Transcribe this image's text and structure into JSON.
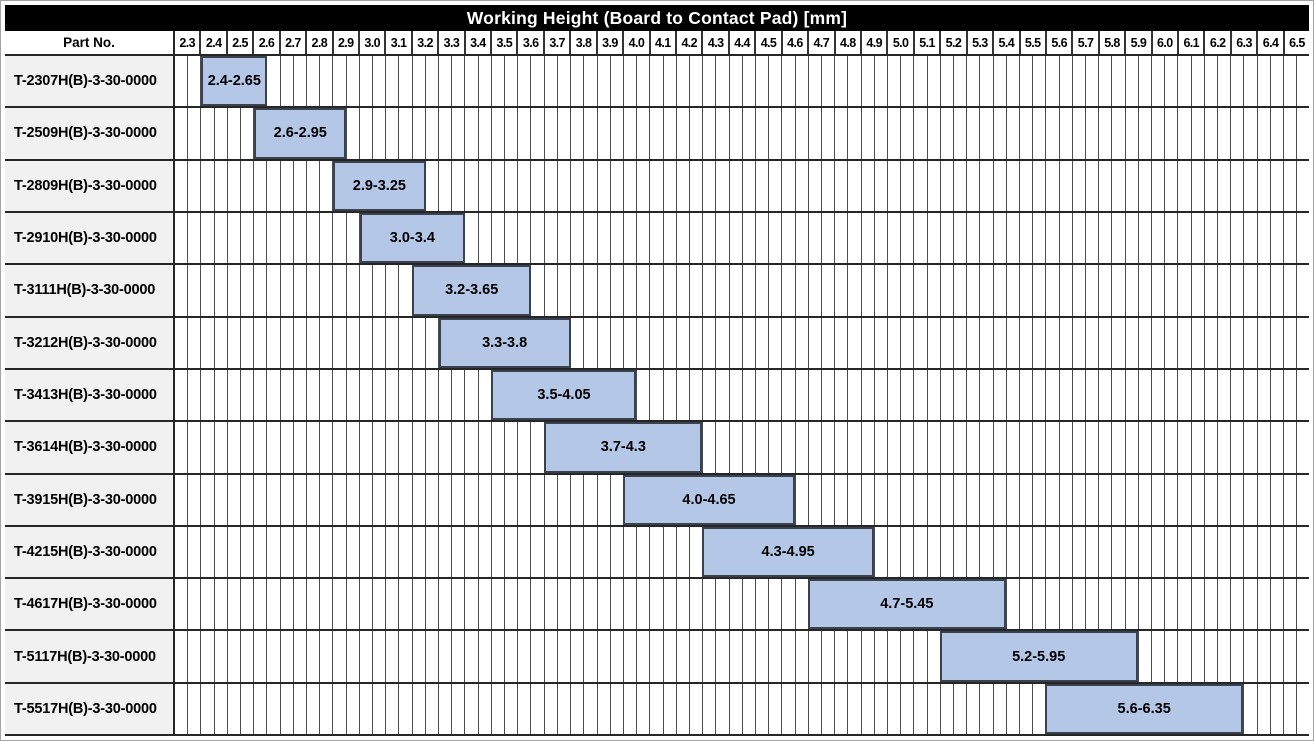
{
  "title": "Working Height (Board to Contact Pad) [mm]",
  "header": {
    "part_no_label": "Part No."
  },
  "colors": {
    "title_bg": "#000000",
    "title_text": "#ffffff",
    "bar_fill": "#b4c7e7",
    "bar_border": "#3a4250",
    "part_cell_bg": "#f1f1f1",
    "grid_line": "#4d4d4d",
    "row_line": "#262626"
  },
  "chart_data": {
    "type": "bar",
    "subtype": "horizontal-range-gantt",
    "title": "Working Height (Board to Contact Pad) [mm]",
    "legend": "none",
    "grid": "on",
    "axis": {
      "min": 2.3,
      "max": 6.6,
      "tick_step": 0.1,
      "minor_step": 0.05,
      "unit": "mm",
      "tick_labels": [
        "2.3",
        "2.4",
        "2.5",
        "2.6",
        "2.7",
        "2.8",
        "2.9",
        "3.0",
        "3.1",
        "3.2",
        "3.3",
        "3.4",
        "3.5",
        "3.6",
        "3.7",
        "3.8",
        "3.9",
        "4.0",
        "4.1",
        "4.2",
        "4.3",
        "4.4",
        "4.5",
        "4.6",
        "4.7",
        "4.8",
        "4.9",
        "5.0",
        "5.1",
        "5.2",
        "5.3",
        "5.4",
        "5.5",
        "5.6",
        "5.7",
        "5.8",
        "5.9",
        "6.0",
        "6.1",
        "6.2",
        "6.3",
        "6.4",
        "6.5"
      ]
    },
    "rows": [
      {
        "part_no": "T-2307H(B)-3-30-0000",
        "start": 2.4,
        "end": 2.65,
        "label": "2.4-2.65"
      },
      {
        "part_no": "T-2509H(B)-3-30-0000",
        "start": 2.6,
        "end": 2.95,
        "label": "2.6-2.95"
      },
      {
        "part_no": "T-2809H(B)-3-30-0000",
        "start": 2.9,
        "end": 3.25,
        "label": "2.9-3.25"
      },
      {
        "part_no": "T-2910H(B)-3-30-0000",
        "start": 3.0,
        "end": 3.4,
        "label": "3.0-3.4"
      },
      {
        "part_no": "T-3111H(B)-3-30-0000",
        "start": 3.2,
        "end": 3.65,
        "label": "3.2-3.65"
      },
      {
        "part_no": "T-3212H(B)-3-30-0000",
        "start": 3.3,
        "end": 3.8,
        "label": "3.3-3.8"
      },
      {
        "part_no": "T-3413H(B)-3-30-0000",
        "start": 3.5,
        "end": 4.05,
        "label": "3.5-4.05"
      },
      {
        "part_no": "T-3614H(B)-3-30-0000",
        "start": 3.7,
        "end": 4.3,
        "label": "3.7-4.3"
      },
      {
        "part_no": "T-3915H(B)-3-30-0000",
        "start": 4.0,
        "end": 4.65,
        "label": "4.0-4.65"
      },
      {
        "part_no": "T-4215H(B)-3-30-0000",
        "start": 4.3,
        "end": 4.95,
        "label": "4.3-4.95"
      },
      {
        "part_no": "T-4617H(B)-3-30-0000",
        "start": 4.7,
        "end": 5.45,
        "label": "4.7-5.45"
      },
      {
        "part_no": "T-5117H(B)-3-30-0000",
        "start": 5.2,
        "end": 5.95,
        "label": "5.2-5.95"
      },
      {
        "part_no": "T-5517H(B)-3-30-0000",
        "start": 5.6,
        "end": 6.35,
        "label": "5.6-6.35"
      }
    ]
  }
}
